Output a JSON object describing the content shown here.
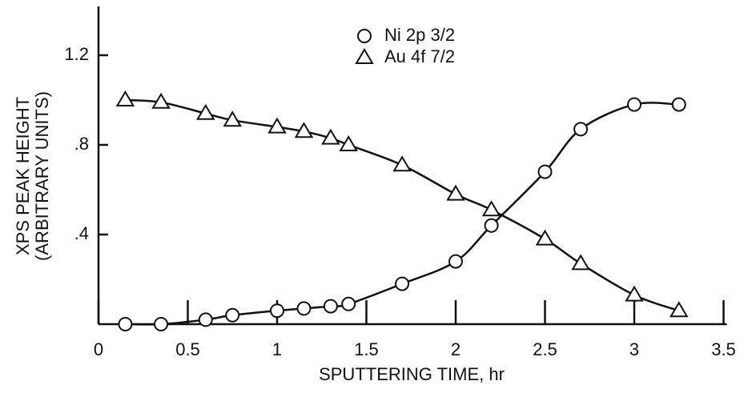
{
  "chart_data": {
    "type": "line",
    "xlabel": "SPUTTERING TIME, hr",
    "ylabel": [
      "XPS PEAK HEIGHT",
      "(ARBITRARY UNITS)"
    ],
    "x": [
      0.15,
      0.35,
      0.6,
      0.75,
      1.0,
      1.15,
      1.3,
      1.4,
      1.7,
      2.0,
      2.2,
      2.5,
      2.7,
      3.0,
      3.25
    ],
    "series": [
      {
        "name": "Ni 2p 3/2",
        "color": "#111111",
        "marker": "circle",
        "values": [
          0.0,
          0.0,
          0.02,
          0.04,
          0.06,
          0.07,
          0.08,
          0.09,
          0.18,
          0.28,
          0.44,
          0.68,
          0.87,
          0.98,
          0.98
        ]
      },
      {
        "name": "Au 4f 7/2",
        "color": "#111111",
        "marker": "triangle",
        "values": [
          1.0,
          0.99,
          0.94,
          0.91,
          0.88,
          0.86,
          0.83,
          0.8,
          0.71,
          0.58,
          0.51,
          0.38,
          0.27,
          0.13,
          0.06
        ]
      }
    ],
    "xlim": [
      0,
      3.5
    ],
    "xticks": [
      0,
      0.5,
      1,
      1.5,
      2,
      2.5,
      3,
      3.5
    ],
    "ylim": [
      0,
      1.4
    ],
    "yticks": [
      {
        "value": 0.4,
        "label": ".4"
      },
      {
        "value": 0.8,
        "label": ".8"
      },
      1.2
    ],
    "legend": "top"
  }
}
